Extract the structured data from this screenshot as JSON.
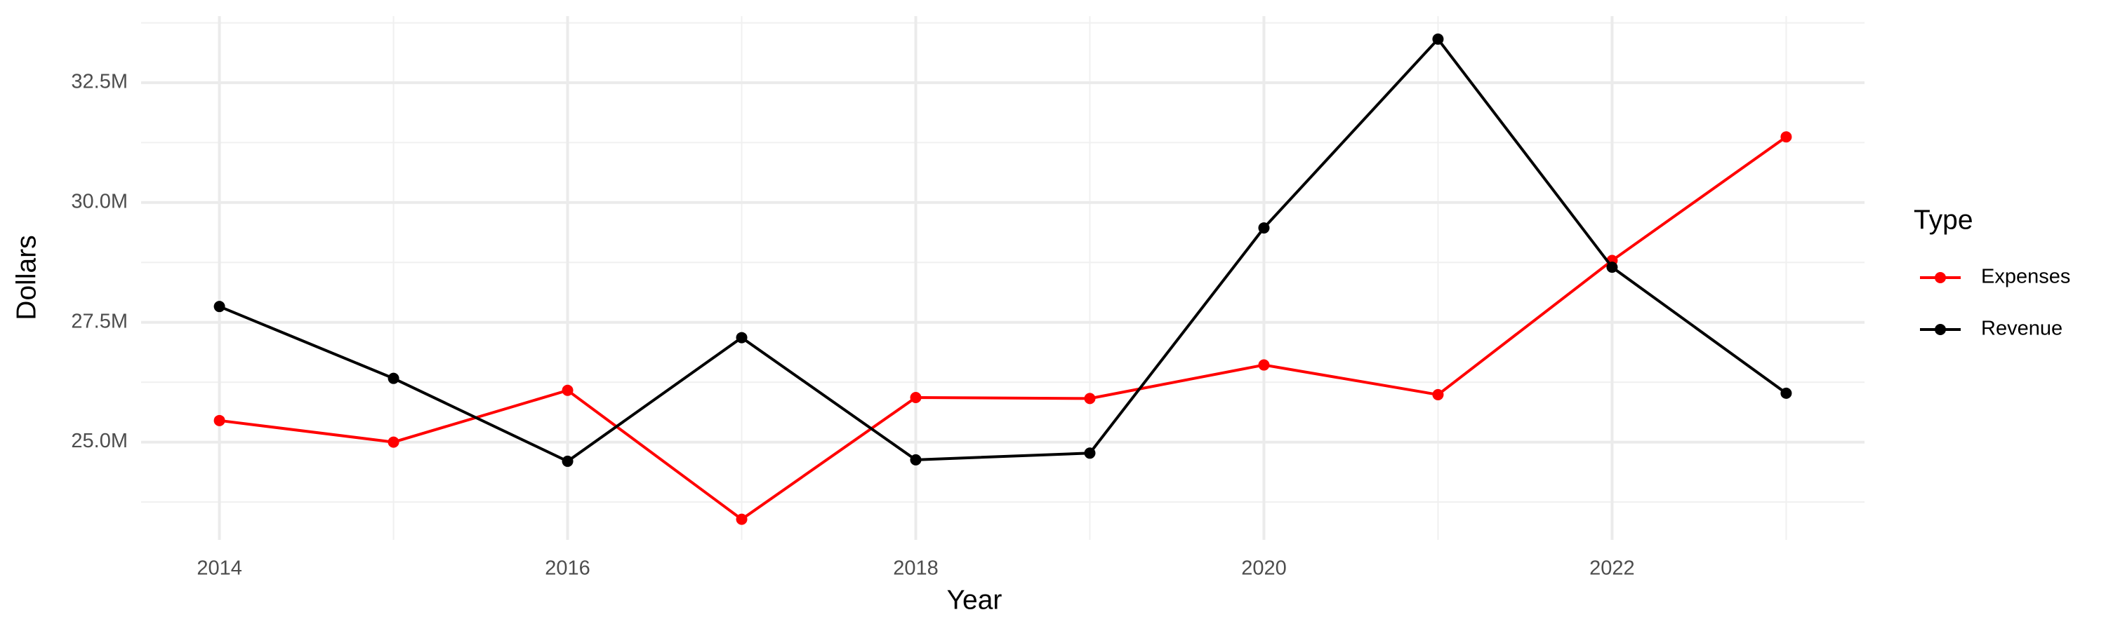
{
  "chart_data": {
    "type": "line",
    "x_label": "Year",
    "y_label": "Dollars",
    "legend_title": "Type",
    "legend_position": "right",
    "grid": true,
    "x": [
      2014,
      2015,
      2016,
      2017,
      2018,
      2019,
      2020,
      2021,
      2022,
      2023
    ],
    "series": [
      {
        "name": "Expenses",
        "color": "#ff0000",
        "values": [
          25450000,
          25000000,
          26080000,
          23390000,
          25930000,
          25910000,
          26610000,
          25990000,
          28790000,
          31370000
        ]
      },
      {
        "name": "Revenue",
        "color": "#000000",
        "values": [
          27830000,
          26330000,
          24600000,
          27180000,
          24630000,
          24770000,
          29470000,
          33410000,
          28650000,
          26020000
        ]
      }
    ],
    "xlim": [
      2013.55,
      2023.45
    ],
    "xticks": [
      2014,
      2016,
      2018,
      2020,
      2022
    ],
    "minor_xticks": [
      2015,
      2017,
      2019,
      2021,
      2023
    ],
    "ylim": [
      22960000,
      33890000
    ],
    "yticks": [
      {
        "value": 25000000,
        "label": "25.0M"
      },
      {
        "value": 27500000,
        "label": "27.5M"
      },
      {
        "value": 30000000,
        "label": "30.0M"
      },
      {
        "value": 32500000,
        "label": "32.5M"
      }
    ],
    "minor_yticks": [
      23750000,
      26250000,
      28750000,
      31250000,
      33750000
    ]
  }
}
